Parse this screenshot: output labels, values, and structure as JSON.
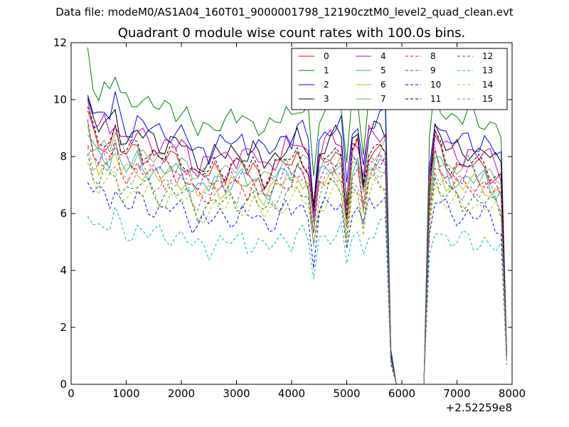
{
  "header": {
    "supertitle": "Data file: modeM0/AS1A04_160T01_9000001798_12190cztM0_level2_quad_clean.evt"
  },
  "chart_data": {
    "type": "line",
    "title": "Quadrant 0 module wise count rates with 100.0s bins.",
    "xlabel": "",
    "ylabel": "",
    "x_offset_label": "+2.52259e8",
    "xlim": [
      0,
      8000
    ],
    "ylim": [
      0,
      12
    ],
    "xticks": [
      0,
      1000,
      2000,
      3000,
      4000,
      5000,
      6000,
      7000,
      8000
    ],
    "yticks": [
      0,
      2,
      4,
      6,
      8,
      10,
      12
    ],
    "legend_position": "top-right",
    "x": [
      300,
      400,
      500,
      600,
      700,
      800,
      900,
      1000,
      1100,
      1200,
      1300,
      1400,
      1500,
      1600,
      1700,
      1800,
      1900,
      2000,
      2100,
      2200,
      2300,
      2400,
      2500,
      2600,
      2700,
      2800,
      2900,
      3000,
      3100,
      3200,
      3300,
      3400,
      3500,
      3600,
      3700,
      3800,
      3900,
      4000,
      4100,
      4200,
      4300,
      4400,
      4500,
      4600,
      4700,
      4800,
      4900,
      5000,
      5100,
      5200,
      5300,
      5400,
      5500,
      5600,
      5700,
      5800,
      5900,
      6000,
      6100,
      6200,
      6300,
      6400,
      6500,
      6600,
      6700,
      6800,
      6900,
      7000,
      7100,
      7200,
      7300,
      7400,
      7500,
      7600,
      7700,
      7800,
      7900
    ],
    "base_shape": [
      1.11,
      1.02,
      0.99,
      1.01,
      0.99,
      1.05,
      0.97,
      0.95,
      0.95,
      0.98,
      0.96,
      0.95,
      0.94,
      0.93,
      0.93,
      0.94,
      0.93,
      0.93,
      0.91,
      0.87,
      0.85,
      0.87,
      0.86,
      0.89,
      0.89,
      0.88,
      0.9,
      0.89,
      0.91,
      0.88,
      0.9,
      0.88,
      0.85,
      0.86,
      0.88,
      0.9,
      0.93,
      0.91,
      0.95,
      0.93,
      0.9,
      0.68,
      0.9,
      0.93,
      0.95,
      0.95,
      0.95,
      0.72,
      0.95,
      0.96,
      0.8,
      0.96,
      0.97,
      0.98,
      0.98,
      0.12,
      0.0,
      0.0,
      0.0,
      0.0,
      0.0,
      0.0,
      0.8,
      1.0,
      0.95,
      0.92,
      0.9,
      0.9,
      0.89,
      0.91,
      0.9,
      0.89,
      0.9,
      0.88,
      0.86,
      0.84,
      0.12
    ],
    "series": [
      {
        "name": "0",
        "color": "#ff0000",
        "style": "solid",
        "level": 8.5
      },
      {
        "name": "1",
        "color": "#008000",
        "style": "solid",
        "level": 10.4
      },
      {
        "name": "2",
        "color": "#0000ff",
        "style": "solid",
        "level": 9.5
      },
      {
        "name": "3",
        "color": "#000000",
        "style": "solid",
        "level": 9.1
      },
      {
        "name": "4",
        "color": "#bf00bf",
        "style": "solid",
        "level": 9.0
      },
      {
        "name": "5",
        "color": "#00bfbf",
        "style": "solid",
        "level": 8.0
      },
      {
        "name": "6",
        "color": "#bfbf00",
        "style": "solid",
        "level": 7.8
      },
      {
        "name": "7",
        "color": "#6fb26f",
        "style": "solid",
        "level": 8.4
      },
      {
        "name": "8",
        "color": "#ff0000",
        "style": "dashed",
        "level": 7.8
      },
      {
        "name": "9",
        "color": "#008000",
        "style": "dashed",
        "level": 7.2
      },
      {
        "name": "10",
        "color": "#0000ff",
        "style": "dashed",
        "level": 6.6
      },
      {
        "name": "11",
        "color": "#000000",
        "style": "dashed",
        "level": 8.6
      },
      {
        "name": "12",
        "color": "#bf00bf",
        "style": "dashed",
        "level": 8.1
      },
      {
        "name": "13",
        "color": "#00bfbf",
        "style": "dashed",
        "level": 5.6
      },
      {
        "name": "14",
        "color": "#bfbf00",
        "style": "dashed",
        "level": 7.0
      },
      {
        "name": "15",
        "color": "#808080",
        "style": "dashed",
        "level": 7.6
      }
    ]
  }
}
